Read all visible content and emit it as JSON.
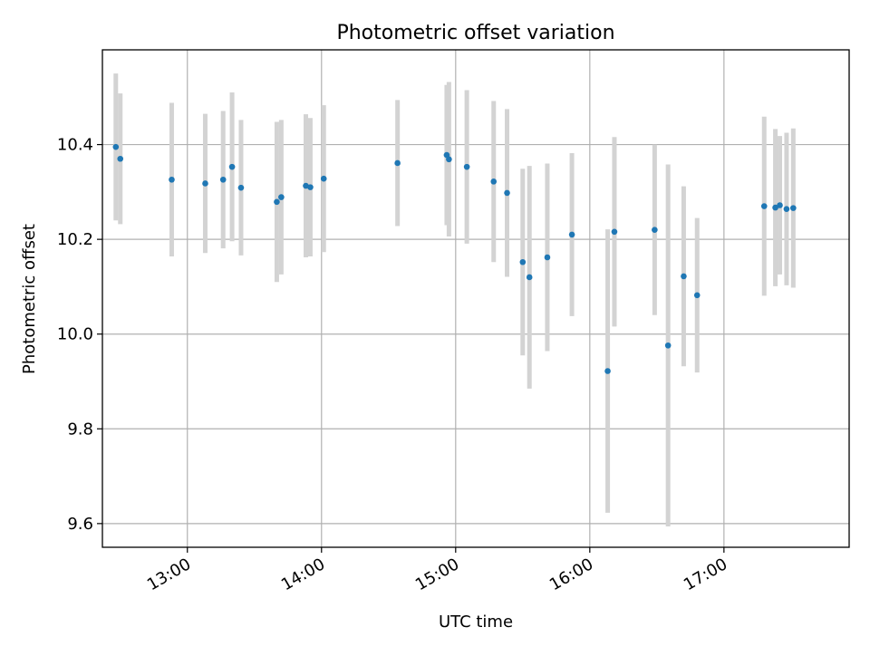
{
  "chart_data": {
    "type": "scatter",
    "title": "Photometric offset variation",
    "xlabel": "UTC time",
    "ylabel": "Photometric offset",
    "xlim": [
      "12:22",
      "17:56"
    ],
    "ylim": [
      9.55,
      10.6
    ],
    "x_ticks": [
      "13:00",
      "14:00",
      "15:00",
      "16:00",
      "17:00"
    ],
    "y_ticks": [
      9.6,
      9.8,
      10.0,
      10.2,
      10.4
    ],
    "grid": true,
    "colors": {
      "point": "#1f77b4",
      "errorbar": "#d3d3d3",
      "grid": "#b0b0b0"
    },
    "points": [
      {
        "x": "12:28",
        "y": 10.395,
        "yerr": 0.155
      },
      {
        "x": "12:30",
        "y": 10.37,
        "yerr": 0.138
      },
      {
        "x": "12:53",
        "y": 10.326,
        "yerr": 0.162
      },
      {
        "x": "13:08",
        "y": 10.318,
        "yerr": 0.147
      },
      {
        "x": "13:16",
        "y": 10.326,
        "yerr": 0.145
      },
      {
        "x": "13:20",
        "y": 10.353,
        "yerr": 0.157
      },
      {
        "x": "13:24",
        "y": 10.309,
        "yerr": 0.143
      },
      {
        "x": "13:40",
        "y": 10.279,
        "yerr": 0.169
      },
      {
        "x": "13:42",
        "y": 10.289,
        "yerr": 0.163
      },
      {
        "x": "13:53",
        "y": 10.313,
        "yerr": 0.151
      },
      {
        "x": "13:55",
        "y": 10.31,
        "yerr": 0.146
      },
      {
        "x": "14:01",
        "y": 10.328,
        "yerr": 0.155
      },
      {
        "x": "14:34",
        "y": 10.361,
        "yerr": 0.133
      },
      {
        "x": "14:56",
        "y": 10.378,
        "yerr": 0.148
      },
      {
        "x": "14:57",
        "y": 10.369,
        "yerr": 0.163
      },
      {
        "x": "15:05",
        "y": 10.353,
        "yerr": 0.162
      },
      {
        "x": "15:17",
        "y": 10.322,
        "yerr": 0.17
      },
      {
        "x": "15:23",
        "y": 10.298,
        "yerr": 0.177
      },
      {
        "x": "15:30",
        "y": 10.152,
        "yerr": 0.197
      },
      {
        "x": "15:33",
        "y": 10.12,
        "yerr": 0.235
      },
      {
        "x": "15:41",
        "y": 10.162,
        "yerr": 0.198
      },
      {
        "x": "15:52",
        "y": 10.21,
        "yerr": 0.172
      },
      {
        "x": "16:08",
        "y": 9.922,
        "yerr": 0.299
      },
      {
        "x": "16:11",
        "y": 10.216,
        "yerr": 0.2
      },
      {
        "x": "16:29",
        "y": 10.22,
        "yerr": 0.18
      },
      {
        "x": "16:35",
        "y": 9.976,
        "yerr": 0.382
      },
      {
        "x": "16:42",
        "y": 10.122,
        "yerr": 0.19
      },
      {
        "x": "16:48",
        "y": 10.082,
        "yerr": 0.163
      },
      {
        "x": "17:18",
        "y": 10.27,
        "yerr": 0.189
      },
      {
        "x": "17:23",
        "y": 10.267,
        "yerr": 0.166
      },
      {
        "x": "17:25",
        "y": 10.272,
        "yerr": 0.146
      },
      {
        "x": "17:28",
        "y": 10.264,
        "yerr": 0.161
      },
      {
        "x": "17:31",
        "y": 10.266,
        "yerr": 0.168
      }
    ]
  }
}
